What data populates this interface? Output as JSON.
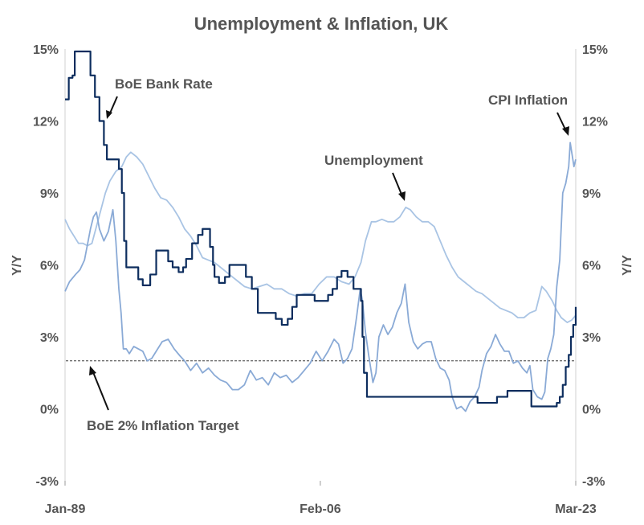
{
  "chart_data": {
    "type": "line",
    "title": "Unemployment & Inflation, UK",
    "ylabel_left": "Y/Y",
    "ylabel_right": "Y/Y",
    "ylim": [
      -3,
      15
    ],
    "yticks": [
      -3,
      0,
      3,
      6,
      9,
      12,
      15
    ],
    "ytick_labels": [
      "-3%",
      "0%",
      "3%",
      "6%",
      "9%",
      "12%",
      "15%"
    ],
    "xlim": [
      1989.0,
      2023.17
    ],
    "xticks": [
      1989.0,
      2006.08,
      2023.17
    ],
    "xtick_labels": [
      "Jan-89",
      "Feb-06",
      "Mar-23"
    ],
    "grid": false,
    "target_line": {
      "name": "BoE 2% Inflation Target",
      "value": 2
    },
    "annotations": [
      {
        "text": "BoE Bank Rate",
        "series": "BoE Bank Rate"
      },
      {
        "text": "CPI Inflation",
        "series": "CPI Inflation"
      },
      {
        "text": "Unemployment",
        "series": "Unemployment"
      },
      {
        "text": "BoE 2% Inflation Target",
        "series": "BoE 2% Inflation Target"
      }
    ],
    "series": [
      {
        "name": "BoE Bank Rate",
        "color": "#0d2d5e",
        "step": true,
        "points": [
          [
            1989.0,
            12.9
          ],
          [
            1989.25,
            13.8
          ],
          [
            1989.5,
            13.9
          ],
          [
            1989.65,
            14.9
          ],
          [
            1990.7,
            13.9
          ],
          [
            1991.0,
            13.0
          ],
          [
            1991.3,
            12.0
          ],
          [
            1991.6,
            11.0
          ],
          [
            1991.8,
            10.4
          ],
          [
            1992.6,
            10.0
          ],
          [
            1992.8,
            9.0
          ],
          [
            1992.95,
            7.0
          ],
          [
            1993.1,
            5.9
          ],
          [
            1993.9,
            5.4
          ],
          [
            1994.2,
            5.15
          ],
          [
            1994.7,
            5.6
          ],
          [
            1995.1,
            6.6
          ],
          [
            1995.9,
            6.15
          ],
          [
            1996.2,
            5.9
          ],
          [
            1996.6,
            5.7
          ],
          [
            1996.9,
            5.9
          ],
          [
            1997.1,
            6.25
          ],
          [
            1997.5,
            6.9
          ],
          [
            1997.9,
            7.25
          ],
          [
            1998.2,
            7.5
          ],
          [
            1998.7,
            6.75
          ],
          [
            1998.9,
            6.0
          ],
          [
            1999.0,
            5.5
          ],
          [
            1999.3,
            5.25
          ],
          [
            1999.7,
            5.5
          ],
          [
            2000.0,
            6.0
          ],
          [
            2001.1,
            5.5
          ],
          [
            2001.5,
            5.0
          ],
          [
            2001.9,
            4.0
          ],
          [
            2003.1,
            3.75
          ],
          [
            2003.5,
            3.5
          ],
          [
            2003.9,
            3.75
          ],
          [
            2004.2,
            4.25
          ],
          [
            2004.5,
            4.75
          ],
          [
            2005.7,
            4.5
          ],
          [
            2006.6,
            4.75
          ],
          [
            2006.9,
            5.0
          ],
          [
            2007.2,
            5.5
          ],
          [
            2007.5,
            5.75
          ],
          [
            2007.9,
            5.5
          ],
          [
            2008.3,
            5.0
          ],
          [
            2008.8,
            4.5
          ],
          [
            2008.9,
            3.0
          ],
          [
            2009.0,
            1.5
          ],
          [
            2009.2,
            0.5
          ],
          [
            2016.6,
            0.25
          ],
          [
            2017.9,
            0.5
          ],
          [
            2018.6,
            0.75
          ],
          [
            2020.2,
            0.1
          ],
          [
            2021.9,
            0.25
          ],
          [
            2022.1,
            0.5
          ],
          [
            2022.3,
            1.0
          ],
          [
            2022.5,
            1.75
          ],
          [
            2022.7,
            2.25
          ],
          [
            2022.85,
            3.0
          ],
          [
            2023.0,
            3.5
          ],
          [
            2023.17,
            4.25
          ]
        ]
      },
      {
        "name": "CPI Inflation",
        "color": "#8aaad6",
        "step": false,
        "points": [
          [
            1989.0,
            4.9
          ],
          [
            1989.3,
            5.3
          ],
          [
            1989.7,
            5.6
          ],
          [
            1990.0,
            5.8
          ],
          [
            1990.3,
            6.2
          ],
          [
            1990.7,
            7.5
          ],
          [
            1990.9,
            8.0
          ],
          [
            1991.1,
            8.2
          ],
          [
            1991.3,
            7.5
          ],
          [
            1991.6,
            7.0
          ],
          [
            1991.9,
            7.4
          ],
          [
            1992.2,
            8.3
          ],
          [
            1992.4,
            7.0
          ],
          [
            1992.6,
            5.0
          ],
          [
            1992.75,
            4.0
          ],
          [
            1992.9,
            2.5
          ],
          [
            1993.1,
            2.5
          ],
          [
            1993.3,
            2.3
          ],
          [
            1993.6,
            2.6
          ],
          [
            1993.9,
            2.5
          ],
          [
            1994.2,
            2.4
          ],
          [
            1994.5,
            2.0
          ],
          [
            1994.8,
            2.1
          ],
          [
            1995.1,
            2.4
          ],
          [
            1995.5,
            2.8
          ],
          [
            1995.9,
            2.9
          ],
          [
            1996.3,
            2.5
          ],
          [
            1996.7,
            2.2
          ],
          [
            1997.0,
            2.0
          ],
          [
            1997.4,
            1.6
          ],
          [
            1997.8,
            1.9
          ],
          [
            1998.2,
            1.5
          ],
          [
            1998.6,
            1.7
          ],
          [
            1999.0,
            1.4
          ],
          [
            1999.4,
            1.2
          ],
          [
            1999.8,
            1.1
          ],
          [
            2000.2,
            0.8
          ],
          [
            2000.6,
            0.8
          ],
          [
            2001.0,
            1.0
          ],
          [
            2001.4,
            1.6
          ],
          [
            2001.8,
            1.2
          ],
          [
            2002.2,
            1.3
          ],
          [
            2002.6,
            1.0
          ],
          [
            2003.0,
            1.5
          ],
          [
            2003.4,
            1.3
          ],
          [
            2003.8,
            1.4
          ],
          [
            2004.2,
            1.1
          ],
          [
            2004.6,
            1.3
          ],
          [
            2005.0,
            1.6
          ],
          [
            2005.4,
            1.9
          ],
          [
            2005.8,
            2.4
          ],
          [
            2006.2,
            2.0
          ],
          [
            2006.6,
            2.4
          ],
          [
            2007.0,
            2.9
          ],
          [
            2007.3,
            2.7
          ],
          [
            2007.6,
            1.9
          ],
          [
            2007.9,
            2.1
          ],
          [
            2008.2,
            2.5
          ],
          [
            2008.5,
            3.8
          ],
          [
            2008.75,
            5.0
          ],
          [
            2008.9,
            4.5
          ],
          [
            2009.1,
            3.2
          ],
          [
            2009.3,
            2.3
          ],
          [
            2009.6,
            1.1
          ],
          [
            2009.8,
            1.5
          ],
          [
            2010.0,
            3.0
          ],
          [
            2010.3,
            3.5
          ],
          [
            2010.6,
            3.1
          ],
          [
            2010.9,
            3.4
          ],
          [
            2011.2,
            4.0
          ],
          [
            2011.5,
            4.4
          ],
          [
            2011.75,
            5.2
          ],
          [
            2012.0,
            3.6
          ],
          [
            2012.3,
            2.8
          ],
          [
            2012.6,
            2.5
          ],
          [
            2012.9,
            2.7
          ],
          [
            2013.2,
            2.8
          ],
          [
            2013.5,
            2.8
          ],
          [
            2013.8,
            2.1
          ],
          [
            2014.1,
            1.7
          ],
          [
            2014.4,
            1.6
          ],
          [
            2014.7,
            1.2
          ],
          [
            2014.9,
            0.5
          ],
          [
            2015.2,
            0.0
          ],
          [
            2015.5,
            0.1
          ],
          [
            2015.8,
            -0.1
          ],
          [
            2016.1,
            0.3
          ],
          [
            2016.4,
            0.5
          ],
          [
            2016.7,
            0.9
          ],
          [
            2016.9,
            1.6
          ],
          [
            2017.2,
            2.3
          ],
          [
            2017.5,
            2.6
          ],
          [
            2017.8,
            3.1
          ],
          [
            2018.1,
            2.7
          ],
          [
            2018.4,
            2.4
          ],
          [
            2018.7,
            2.4
          ],
          [
            2019.0,
            1.9
          ],
          [
            2019.3,
            2.0
          ],
          [
            2019.6,
            1.7
          ],
          [
            2019.9,
            1.5
          ],
          [
            2020.1,
            1.8
          ],
          [
            2020.3,
            0.8
          ],
          [
            2020.6,
            0.5
          ],
          [
            2020.9,
            0.4
          ],
          [
            2021.1,
            0.7
          ],
          [
            2021.3,
            2.1
          ],
          [
            2021.5,
            2.5
          ],
          [
            2021.7,
            3.1
          ],
          [
            2021.9,
            5.1
          ],
          [
            2022.1,
            6.2
          ],
          [
            2022.3,
            9.0
          ],
          [
            2022.5,
            9.4
          ],
          [
            2022.7,
            10.1
          ],
          [
            2022.8,
            11.1
          ],
          [
            2022.95,
            10.5
          ],
          [
            2023.05,
            10.1
          ],
          [
            2023.17,
            10.4
          ]
        ]
      },
      {
        "name": "Unemployment",
        "color": "#a9c4e4",
        "step": false,
        "points": [
          [
            1989.0,
            7.9
          ],
          [
            1989.3,
            7.5
          ],
          [
            1989.6,
            7.2
          ],
          [
            1989.9,
            6.9
          ],
          [
            1990.2,
            6.9
          ],
          [
            1990.5,
            6.8
          ],
          [
            1990.8,
            6.9
          ],
          [
            1991.1,
            7.6
          ],
          [
            1991.4,
            8.3
          ],
          [
            1991.7,
            9.0
          ],
          [
            1992.0,
            9.5
          ],
          [
            1992.4,
            9.9
          ],
          [
            1992.8,
            10.1
          ],
          [
            1993.1,
            10.5
          ],
          [
            1993.4,
            10.7
          ],
          [
            1993.8,
            10.5
          ],
          [
            1994.2,
            10.2
          ],
          [
            1994.6,
            9.7
          ],
          [
            1995.0,
            9.2
          ],
          [
            1995.4,
            8.8
          ],
          [
            1995.8,
            8.7
          ],
          [
            1996.2,
            8.4
          ],
          [
            1996.6,
            8.0
          ],
          [
            1997.0,
            7.5
          ],
          [
            1997.4,
            7.2
          ],
          [
            1997.8,
            6.8
          ],
          [
            1998.2,
            6.3
          ],
          [
            1998.6,
            6.2
          ],
          [
            1999.0,
            6.1
          ],
          [
            1999.4,
            5.9
          ],
          [
            1999.8,
            5.7
          ],
          [
            2000.2,
            5.5
          ],
          [
            2000.6,
            5.3
          ],
          [
            2001.0,
            5.1
          ],
          [
            2001.5,
            5.0
          ],
          [
            2002.0,
            5.1
          ],
          [
            2002.5,
            5.2
          ],
          [
            2003.0,
            5.0
          ],
          [
            2003.5,
            5.0
          ],
          [
            2004.0,
            4.8
          ],
          [
            2004.5,
            4.7
          ],
          [
            2005.0,
            4.8
          ],
          [
            2005.5,
            4.8
          ],
          [
            2006.0,
            5.2
          ],
          [
            2006.5,
            5.5
          ],
          [
            2007.0,
            5.5
          ],
          [
            2007.5,
            5.3
          ],
          [
            2008.0,
            5.2
          ],
          [
            2008.4,
            5.5
          ],
          [
            2008.8,
            6.1
          ],
          [
            2009.1,
            7.0
          ],
          [
            2009.5,
            7.8
          ],
          [
            2009.8,
            7.8
          ],
          [
            2010.2,
            7.9
          ],
          [
            2010.6,
            7.8
          ],
          [
            2011.0,
            7.8
          ],
          [
            2011.4,
            8.0
          ],
          [
            2011.8,
            8.4
          ],
          [
            2012.1,
            8.3
          ],
          [
            2012.5,
            8.0
          ],
          [
            2012.9,
            7.8
          ],
          [
            2013.3,
            7.8
          ],
          [
            2013.7,
            7.6
          ],
          [
            2014.1,
            7.0
          ],
          [
            2014.5,
            6.4
          ],
          [
            2014.9,
            5.9
          ],
          [
            2015.3,
            5.5
          ],
          [
            2015.7,
            5.3
          ],
          [
            2016.1,
            5.1
          ],
          [
            2016.5,
            4.9
          ],
          [
            2016.9,
            4.8
          ],
          [
            2017.3,
            4.6
          ],
          [
            2017.7,
            4.4
          ],
          [
            2018.1,
            4.2
          ],
          [
            2018.5,
            4.1
          ],
          [
            2018.9,
            4.0
          ],
          [
            2019.3,
            3.8
          ],
          [
            2019.7,
            3.8
          ],
          [
            2020.1,
            4.0
          ],
          [
            2020.5,
            4.1
          ],
          [
            2020.9,
            5.1
          ],
          [
            2021.2,
            4.9
          ],
          [
            2021.6,
            4.5
          ],
          [
            2021.9,
            4.1
          ],
          [
            2022.2,
            3.8
          ],
          [
            2022.6,
            3.6
          ],
          [
            2022.9,
            3.7
          ],
          [
            2023.17,
            3.9
          ]
        ]
      }
    ]
  }
}
